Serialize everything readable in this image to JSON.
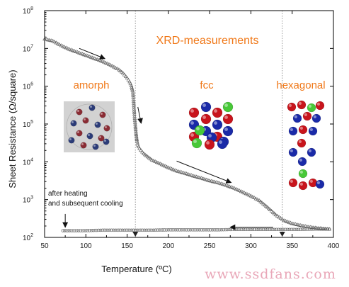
{
  "chart_data": {
    "type": "scatter",
    "title": "",
    "header_annotation": "XRD-measurements",
    "xlabel": "Temperature (ºC)",
    "ylabel": "Sheet Resistance (Ω/square)",
    "xlim": [
      50,
      400
    ],
    "ylim_log10": [
      2,
      8
    ],
    "x_ticks": [
      "50",
      "100",
      "150",
      "200",
      "250",
      "300",
      "350",
      "400"
    ],
    "y_ticks": [
      "10^2",
      "10^3",
      "10^4",
      "10^5",
      "10^6",
      "10^7",
      "10^8"
    ],
    "y_tick_exponents": [
      "2",
      "3",
      "4",
      "5",
      "6",
      "7",
      "8"
    ],
    "y_tick_base": "10",
    "log_scale_y": true,
    "grid": false,
    "reference_lines_x": [
      160,
      338
    ],
    "phase_labels": [
      "amorph",
      "fcc",
      "hexagonal"
    ],
    "note": [
      "after heating",
      "and subsequent cooling"
    ],
    "series": [
      {
        "role": "heating",
        "marker": "open-triangle",
        "x": [
          50,
          60,
          70,
          80,
          90,
          100,
          110,
          120,
          130,
          140,
          145,
          150,
          153,
          155,
          157,
          158,
          159,
          160,
          161,
          162,
          163,
          165,
          170,
          180,
          190,
          200,
          210,
          220,
          230,
          240,
          250,
          260,
          270,
          280,
          290,
          300,
          310,
          320,
          330,
          340,
          350,
          360,
          370,
          380,
          390,
          395
        ],
        "log10_y": [
          7.25,
          7.2,
          7.08,
          6.98,
          6.9,
          6.82,
          6.74,
          6.66,
          6.56,
          6.44,
          6.35,
          6.22,
          6.12,
          6.02,
          5.85,
          5.55,
          5.2,
          4.95,
          4.72,
          4.55,
          4.45,
          4.35,
          4.22,
          4.05,
          3.95,
          3.85,
          3.76,
          3.7,
          3.63,
          3.57,
          3.5,
          3.45,
          3.38,
          3.3,
          3.2,
          3.1,
          2.98,
          2.8,
          2.6,
          2.45,
          2.37,
          2.32,
          2.28,
          2.25,
          2.23,
          2.22
        ]
      },
      {
        "role": "cooling",
        "marker": "open-circle",
        "x": [
          72,
          80,
          100,
          120,
          140,
          160,
          180,
          200,
          220,
          240,
          260,
          280,
          300,
          320,
          340,
          360,
          380,
          395
        ],
        "log10_y": [
          2.18,
          2.18,
          2.18,
          2.19,
          2.19,
          2.19,
          2.19,
          2.2,
          2.2,
          2.2,
          2.2,
          2.21,
          2.21,
          2.21,
          2.21,
          2.21,
          2.22,
          2.22
        ]
      }
    ]
  },
  "watermark": "www.ssdfans.com",
  "colors": {
    "accent": "#f07818",
    "curve": "#555555",
    "axis": "#000000",
    "reference_line": "#9a9a9a",
    "watermark": "#e9a7b8"
  }
}
